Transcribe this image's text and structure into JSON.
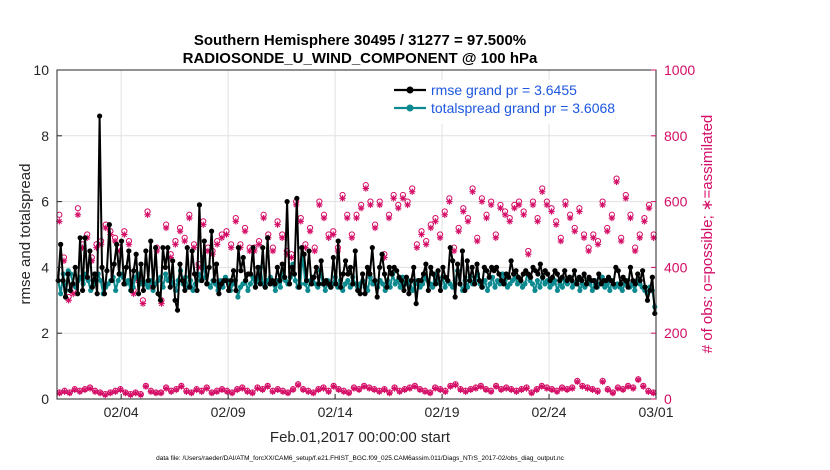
{
  "chart_data": {
    "type": "line",
    "title": "Southern Hemisphere 30495 / 31277 = 97.500%",
    "subtitle": "RADIOSONDE_U_WIND_COMPONENT @ 100 hPa",
    "xlabel": "Feb.01,2017 00:00:00 start",
    "ylabel": "rmse and totalspread",
    "y2label": "# of obs: o=possible; ∗=assimilated",
    "footer": "data file: /Users/raeder/DAI/ATM_forcXX/CAM6_setup/f.e21.FHIST_BGC.f09_025.CAM6assim.011/Diags_NTrS_2017-02/obs_diag_output.nc",
    "xlim": [
      0,
      28
    ],
    "ylim": [
      0,
      10
    ],
    "y2lim": [
      0,
      1000
    ],
    "x_ticks": [
      {
        "value": 3,
        "label": "02/04"
      },
      {
        "value": 8,
        "label": "02/09"
      },
      {
        "value": 13,
        "label": "02/14"
      },
      {
        "value": 18,
        "label": "02/19"
      },
      {
        "value": 23,
        "label": "02/24"
      },
      {
        "value": 28,
        "label": "03/01"
      }
    ],
    "y_ticks": [
      "0",
      "2",
      "4",
      "6",
      "8",
      "10"
    ],
    "y2_ticks": [
      "0",
      "200",
      "400",
      "600",
      "800",
      "1000"
    ],
    "legend": {
      "placement": "top-right"
    },
    "colors": {
      "rmse": "#000000",
      "spread": "#0c8a8f",
      "obs": "#d40d66",
      "axis": "#262626"
    },
    "series": [
      {
        "name": "rmse grand pr = 3.6455",
        "axis": "left",
        "marker": "filled-circle",
        "values": [
          3.6,
          4.7,
          3.6,
          3.1,
          3.8,
          3.3,
          3.5,
          4.0,
          3.2,
          4.9,
          3.3,
          4.9,
          3.7,
          4.5,
          3.4,
          3.8,
          3.2,
          8.6,
          4.0,
          3.2,
          3.9,
          5.3,
          3.6,
          4.1,
          4.7,
          3.8,
          4.8,
          3.5,
          4.0,
          4.5,
          3.3,
          3.9,
          4.4,
          3.2,
          4.1,
          3.3,
          4.5,
          3.6,
          4.8,
          3.4,
          4.6,
          3.2,
          3.0,
          4.6,
          4.0,
          4.6,
          3.4,
          4.2,
          3.0,
          2.7,
          4.1,
          3.6,
          3.3,
          4.6,
          3.4,
          4.5,
          3.8,
          3.3,
          5.9,
          3.6,
          4.8,
          3.5,
          4.0,
          5.1,
          3.6,
          4.1,
          3.2,
          3.5,
          3.6,
          3.6,
          3.3,
          3.6,
          3.9,
          3.3,
          4.6,
          3.9,
          4.3,
          3.6,
          3.8,
          3.8,
          4.6,
          3.4,
          4.0,
          3.5,
          4.6,
          3.4,
          4.9,
          3.5,
          3.6,
          3.5,
          4.0,
          3.6,
          4.1,
          3.7,
          6.0,
          3.5,
          4.0,
          3.8,
          6.1,
          3.4,
          4.6,
          4.4,
          3.6,
          4.5,
          3.5,
          3.7,
          4.0,
          3.5,
          4.2,
          3.5,
          3.6,
          3.5,
          3.4,
          4.3,
          3.5,
          4.8,
          3.4,
          3.8,
          4.2,
          3.8,
          4.0,
          3.5,
          4.5,
          3.3,
          3.2,
          3.8,
          3.2,
          4.0,
          3.8,
          4.6,
          3.6,
          3.1,
          4.0,
          4.4,
          3.8,
          3.4,
          4.0,
          3.8,
          4.0,
          3.9,
          3.7,
          3.6,
          3.3,
          3.7,
          3.2,
          3.6,
          4.0,
          2.9,
          3.6,
          3.6,
          3.8,
          4.1,
          3.3,
          4.0,
          3.8,
          3.5,
          3.9,
          3.3,
          4.0,
          3.7,
          3.6,
          4.6,
          4.2,
          3.1,
          4.1,
          3.5,
          4.5,
          3.3,
          4.2,
          3.6,
          4.0,
          3.5,
          4.1,
          3.6,
          3.4,
          4.0,
          3.9,
          3.7,
          4.0,
          3.9,
          4.0,
          3.8,
          3.6,
          3.5,
          3.8,
          3.7,
          4.2,
          3.8,
          3.9,
          3.7,
          3.6,
          3.8,
          3.9,
          3.8,
          3.7,
          4.0,
          3.9,
          3.8,
          4.1,
          3.7,
          3.9,
          3.8,
          3.6,
          3.7,
          3.9,
          3.8,
          3.6,
          3.7,
          3.9,
          3.6,
          3.7,
          3.6,
          3.9,
          3.5,
          3.7,
          3.6,
          3.8,
          3.5,
          3.7,
          3.6,
          3.6,
          3.4,
          3.8,
          3.5,
          3.6,
          3.6,
          3.7,
          3.6,
          3.5,
          4.0,
          3.9,
          3.5,
          3.7,
          3.6,
          3.4,
          4.0,
          3.6,
          3.5,
          3.8,
          3.6,
          3.9,
          3.4,
          3.0,
          3.3,
          3.7,
          2.6
        ]
      },
      {
        "name": "totalspread grand pr = 3.6068",
        "axis": "left",
        "marker": "filled-circle",
        "values": [
          3.6,
          3.2,
          3.8,
          3.3,
          3.9,
          3.8,
          3.5,
          3.4,
          3.6,
          3.7,
          3.5,
          3.8,
          3.6,
          3.3,
          3.5,
          3.7,
          3.8,
          3.6,
          3.2,
          3.4,
          3.5,
          3.6,
          3.7,
          3.3,
          3.6,
          3.8,
          3.7,
          3.5,
          3.6,
          3.3,
          3.4,
          3.7,
          3.8,
          3.5,
          3.6,
          3.5,
          3.4,
          3.6,
          3.3,
          3.5,
          3.6,
          3.7,
          3.4,
          3.8,
          3.6,
          3.7,
          3.5,
          3.3,
          3.6,
          3.9,
          3.5,
          3.7,
          3.4,
          3.6,
          3.3,
          3.5,
          3.8,
          3.6,
          4.3,
          3.7,
          3.5,
          3.4,
          3.6,
          3.5,
          3.3,
          3.6,
          3.4,
          3.7,
          3.6,
          3.3,
          3.5,
          3.6,
          3.1,
          3.4,
          3.5,
          3.6,
          3.3,
          3.5,
          3.7,
          3.4,
          3.6,
          4.0,
          3.5,
          3.4,
          3.6,
          3.7,
          3.5,
          3.3,
          3.6,
          3.4,
          3.9,
          3.6,
          3.5,
          3.7,
          4.1,
          3.6,
          3.4,
          3.5,
          4.4,
          3.5,
          3.3,
          3.6,
          3.7,
          3.5,
          3.4,
          3.9,
          3.5,
          3.3,
          3.6,
          3.4,
          3.5,
          3.7,
          3.4,
          3.6,
          3.3,
          3.5,
          3.6,
          3.4,
          3.7,
          3.5,
          3.4,
          3.5,
          3.6,
          3.4,
          3.3,
          3.7,
          3.5,
          3.6,
          3.4,
          3.6,
          3.5,
          3.3,
          3.6,
          3.4,
          3.8,
          3.5,
          3.6,
          3.4,
          3.7,
          3.5,
          3.6,
          3.4,
          3.3,
          3.5,
          3.6,
          3.4,
          3.5,
          3.7,
          3.6,
          3.5,
          3.4,
          3.8,
          3.6,
          3.5,
          3.7,
          3.4,
          3.6,
          3.5,
          3.4,
          3.6,
          3.9,
          3.5,
          3.3,
          3.6,
          3.4,
          3.7,
          3.5,
          3.6,
          3.8,
          3.5,
          3.4,
          3.6,
          3.3,
          3.5,
          3.7,
          3.4,
          3.6,
          3.5,
          3.8,
          3.6,
          3.4,
          3.5,
          3.6,
          3.7,
          3.5,
          3.6,
          3.4,
          3.5,
          3.8,
          3.6,
          3.5,
          3.3,
          3.6,
          3.4,
          3.7,
          3.5,
          3.6,
          3.4,
          3.5,
          3.6,
          3.3,
          3.5,
          3.4,
          3.6,
          3.5,
          3.7,
          3.4,
          3.5,
          3.6,
          3.3,
          3.5,
          3.4,
          3.6,
          3.5,
          3.3,
          3.6,
          3.4,
          3.5,
          3.7,
          3.4,
          3.5,
          3.3,
          3.6,
          3.4,
          3.5,
          3.4,
          3.3,
          3.5,
          3.6,
          3.4,
          3.5,
          3.3,
          3.6,
          3.5,
          3.4,
          3.3,
          3.2,
          3.4,
          3.3,
          2.8
        ]
      },
      {
        "name": "obs possible",
        "axis": "right",
        "marker": "open-circle",
        "values": [
          560,
          430,
          310,
          330,
          580,
          470,
          500,
          430,
          470,
          480,
          530,
          510,
          490,
          460,
          510,
          480,
          330,
          370,
          300,
          570,
          350,
          460,
          300,
          530,
          440,
          480,
          520,
          490,
          560,
          470,
          410,
          540,
          460,
          450,
          480,
          500,
          510,
          470,
          550,
          470,
          520,
          460,
          460,
          480,
          560,
          500,
          460,
          540,
          500,
          450,
          440,
          600,
          550,
          470,
          520,
          460,
          600,
          560,
          500,
          510,
          460,
          620,
          560,
          500,
          560,
          590,
          650,
          600,
          530,
          600,
          440,
          560,
          620,
          590,
          620,
          600,
          640,
          470,
          510,
          480,
          530,
          550,
          500,
          570,
          610,
          460,
          520,
          580,
          550,
          640,
          490,
          610,
          560,
          600,
          500,
          590,
          570,
          550,
          590,
          600,
          570,
          450,
          600,
          550,
          640,
          600,
          580,
          540,
          490,
          600,
          560,
          520,
          580,
          500,
          460,
          500,
          480,
          600,
          520,
          560,
          670,
          490,
          620,
          560,
          460,
          500,
          550,
          590,
          500
        ]
      },
      {
        "name": "obs assimilated",
        "axis": "right",
        "marker": "asterisk",
        "values": [
          540,
          420,
          300,
          320,
          560,
          460,
          490,
          420,
          460,
          470,
          520,
          500,
          480,
          450,
          500,
          470,
          320,
          360,
          290,
          560,
          340,
          450,
          290,
          520,
          430,
          470,
          510,
          480,
          550,
          460,
          400,
          530,
          450,
          440,
          470,
          490,
          500,
          460,
          540,
          460,
          510,
          450,
          450,
          470,
          550,
          490,
          450,
          530,
          490,
          440,
          430,
          590,
          540,
          460,
          510,
          450,
          590,
          550,
          490,
          500,
          450,
          610,
          550,
          490,
          550,
          580,
          640,
          590,
          520,
          590,
          430,
          550,
          610,
          580,
          610,
          590,
          630,
          460,
          500,
          470,
          520,
          540,
          490,
          560,
          600,
          450,
          510,
          570,
          540,
          630,
          480,
          600,
          550,
          590,
          490,
          580,
          560,
          540,
          580,
          590,
          560,
          440,
          590,
          540,
          630,
          590,
          570,
          530,
          480,
          590,
          550,
          510,
          570,
          490,
          450,
          490,
          470,
          590,
          510,
          550,
          660,
          480,
          610,
          550,
          450,
          490,
          540,
          580,
          490
        ]
      },
      {
        "name": "obs possible low",
        "axis": "right",
        "marker": "open-circle",
        "values": [
          20,
          25,
          20,
          30,
          25,
          30,
          35,
          25,
          20,
          15,
          20,
          25,
          30,
          20,
          15,
          20,
          15,
          40,
          25,
          20,
          20,
          35,
          25,
          30,
          40,
          25,
          20,
          30,
          25,
          35,
          20,
          25,
          30,
          25,
          20,
          30,
          35,
          25,
          20,
          35,
          30,
          40,
          25,
          30,
          25,
          20,
          30,
          45,
          30,
          25,
          20,
          30,
          35,
          25,
          40,
          30,
          25,
          20,
          35,
          30,
          40,
          35,
          30,
          25,
          30,
          20,
          35,
          25,
          30,
          35,
          40,
          30,
          25,
          20,
          35,
          30,
          25,
          40,
          45,
          30,
          25,
          30,
          35,
          40,
          30,
          25,
          40,
          30,
          35,
          30,
          25,
          30,
          35,
          20,
          30,
          40,
          35,
          30,
          25,
          35,
          30,
          35,
          55,
          40,
          35,
          30,
          25,
          55,
          30,
          20,
          35,
          30,
          40,
          35,
          60,
          40,
          25,
          20
        ]
      },
      {
        "name": "obs assimilated low",
        "axis": "right",
        "marker": "asterisk",
        "values": [
          18,
          22,
          18,
          28,
          22,
          28,
          32,
          22,
          18,
          12,
          18,
          22,
          28,
          18,
          12,
          18,
          12,
          38,
          22,
          18,
          18,
          32,
          22,
          28,
          38,
          22,
          18,
          28,
          22,
          32,
          18,
          22,
          28,
          22,
          18,
          28,
          32,
          22,
          18,
          32,
          28,
          38,
          22,
          28,
          22,
          18,
          28,
          42,
          28,
          22,
          18,
          28,
          32,
          22,
          38,
          28,
          22,
          18,
          32,
          28,
          38,
          32,
          28,
          22,
          28,
          18,
          32,
          22,
          28,
          32,
          38,
          28,
          22,
          18,
          32,
          28,
          22,
          38,
          42,
          28,
          22,
          28,
          32,
          38,
          28,
          22,
          38,
          28,
          32,
          28,
          22,
          28,
          32,
          18,
          28,
          38,
          32,
          28,
          22,
          32,
          28,
          32,
          52,
          38,
          32,
          28,
          22,
          52,
          28,
          18,
          32,
          28,
          38,
          32,
          58,
          38,
          22,
          18
        ]
      }
    ],
    "legend_entries": [
      "rmse grand pr = 3.6455",
      "totalspread grand pr = 3.6068"
    ]
  }
}
